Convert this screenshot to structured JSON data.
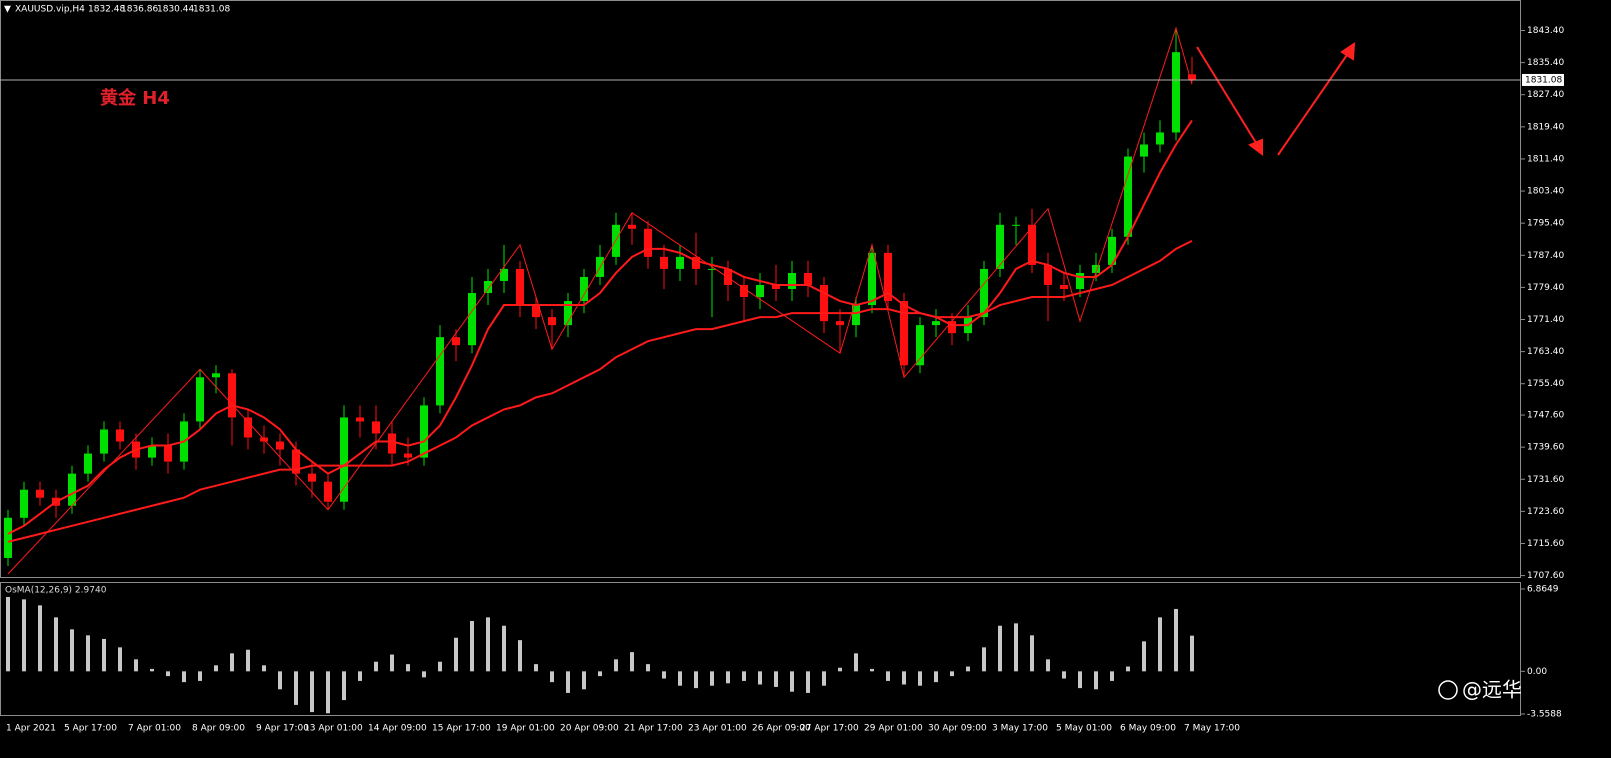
{
  "chart_data": [
    {
      "type": "candlestick",
      "title": "XAUUSD.vip,H4",
      "annotation": "黄金 H4",
      "up_color": "#00e000",
      "down_color": "#ff1010",
      "wick_color_follows_body": true,
      "categories": [
        "1 Apr 2021",
        null,
        null,
        null,
        "5 Apr 17:00",
        null,
        null,
        null,
        "7 Apr 01:00",
        null,
        null,
        null,
        "8 Apr 09:00",
        null,
        null,
        null,
        "9 Apr 17:00",
        null,
        null,
        "13 Apr 01:00",
        null,
        null,
        null,
        "14 Apr 09:00",
        null,
        null,
        null,
        "15 Apr 17:00",
        null,
        null,
        null,
        "19 Apr 01:00",
        null,
        null,
        null,
        "20 Apr 09:00",
        null,
        null,
        null,
        "21 Apr 17:00",
        null,
        null,
        null,
        "23 Apr 01:00",
        null,
        null,
        null,
        "26 Apr 09:00",
        null,
        null,
        "27 Apr 17:00",
        null,
        null,
        null,
        "29 Apr 01:00",
        null,
        null,
        null,
        "30 Apr 09:00",
        null,
        null,
        null,
        "3 May 17:00",
        null,
        null,
        null,
        "5 May 01:00",
        null,
        null,
        null,
        "6 May 09:00",
        null,
        null,
        null,
        "7 May 17:00"
      ],
      "ohlc": [
        [
          1712,
          1724,
          1710,
          1722
        ],
        [
          1722,
          1731,
          1720,
          1729
        ],
        [
          1729,
          1731,
          1725,
          1727
        ],
        [
          1727,
          1729,
          1722,
          1725
        ],
        [
          1725,
          1735,
          1723,
          1733
        ],
        [
          1733,
          1740,
          1731,
          1738
        ],
        [
          1738,
          1746,
          1736,
          1744
        ],
        [
          1744,
          1746,
          1739,
          1741
        ],
        [
          1741,
          1743,
          1734,
          1737
        ],
        [
          1737,
          1742,
          1735,
          1740
        ],
        [
          1740,
          1743,
          1733,
          1736
        ],
        [
          1736,
          1748,
          1734,
          1746
        ],
        [
          1746,
          1759,
          1744,
          1757
        ],
        [
          1757,
          1760,
          1753,
          1758
        ],
        [
          1758,
          1759,
          1740,
          1747
        ],
        [
          1747,
          1749,
          1739,
          1742
        ],
        [
          1742,
          1745,
          1738,
          1741
        ],
        [
          1741,
          1743,
          1735,
          1739
        ],
        [
          1739,
          1741,
          1730,
          1733
        ],
        [
          1733,
          1736,
          1727,
          1731
        ],
        [
          1731,
          1733,
          1724,
          1726
        ],
        [
          1726,
          1750,
          1724,
          1747
        ],
        [
          1747,
          1750,
          1742,
          1746
        ],
        [
          1746,
          1750,
          1739,
          1743
        ],
        [
          1743,
          1746,
          1735,
          1738
        ],
        [
          1738,
          1742,
          1735,
          1737
        ],
        [
          1737,
          1752,
          1735,
          1750
        ],
        [
          1750,
          1770,
          1748,
          1767
        ],
        [
          1767,
          1769,
          1761,
          1765
        ],
        [
          1765,
          1782,
          1763,
          1778
        ],
        [
          1778,
          1784,
          1775,
          1781
        ],
        [
          1781,
          1790,
          1778,
          1784
        ],
        [
          1784,
          1786,
          1772,
          1775
        ],
        [
          1775,
          1777,
          1769,
          1772
        ],
        [
          1772,
          1774,
          1764,
          1770
        ],
        [
          1770,
          1778,
          1767,
          1776
        ],
        [
          1776,
          1784,
          1773,
          1782
        ],
        [
          1782,
          1790,
          1780,
          1787
        ],
        [
          1787,
          1798,
          1785,
          1795
        ],
        [
          1795,
          1798,
          1790,
          1794
        ],
        [
          1794,
          1796,
          1784,
          1787
        ],
        [
          1787,
          1790,
          1779,
          1784
        ],
        [
          1784,
          1790,
          1781,
          1787
        ],
        [
          1787,
          1793,
          1780,
          1784
        ],
        [
          1784,
          1787,
          1772,
          1784
        ],
        [
          1784,
          1786,
          1776,
          1780
        ],
        [
          1780,
          1782,
          1771,
          1777
        ],
        [
          1777,
          1783,
          1774,
          1780
        ],
        [
          1780,
          1785,
          1776,
          1779
        ],
        [
          1779,
          1786,
          1776,
          1783
        ],
        [
          1783,
          1786,
          1777,
          1780
        ],
        [
          1780,
          1782,
          1768,
          1771
        ],
        [
          1771,
          1774,
          1763,
          1770
        ],
        [
          1770,
          1777,
          1767,
          1775
        ],
        [
          1775,
          1790,
          1773,
          1788
        ],
        [
          1788,
          1790,
          1774,
          1776
        ],
        [
          1776,
          1778,
          1757,
          1760
        ],
        [
          1760,
          1772,
          1758,
          1770
        ],
        [
          1770,
          1774,
          1767,
          1771
        ],
        [
          1771,
          1773,
          1765,
          1768
        ],
        [
          1768,
          1775,
          1766,
          1772
        ],
        [
          1772,
          1786,
          1770,
          1784
        ],
        [
          1784,
          1798,
          1782,
          1795
        ],
        [
          1795,
          1797,
          1790,
          1795
        ],
        [
          1795,
          1799,
          1783,
          1785
        ],
        [
          1785,
          1788,
          1771,
          1780
        ],
        [
          1780,
          1783,
          1776,
          1779
        ],
        [
          1779,
          1785,
          1777,
          1783
        ],
        [
          1783,
          1788,
          1781,
          1785
        ],
        [
          1785,
          1794,
          1783,
          1792
        ],
        [
          1792,
          1814,
          1790,
          1812
        ],
        [
          1812,
          1818,
          1808,
          1815
        ],
        [
          1815,
          1821,
          1813,
          1818
        ],
        [
          1818,
          1844,
          1816,
          1838
        ],
        [
          1832.48,
          1836.86,
          1830.44,
          1831.08
        ]
      ],
      "overlays": [
        {
          "color": "#ff1a1a",
          "values": [
            1718,
            1720,
            1723,
            1726,
            1728,
            1730,
            1734,
            1737,
            1739,
            1740,
            1740,
            1741,
            1744,
            1748,
            1750,
            1749,
            1747,
            1744,
            1739,
            1736,
            1733,
            1735,
            1738,
            1741,
            1741,
            1740,
            1741,
            1745,
            1752,
            1760,
            1769,
            1775,
            1775,
            1775,
            1775,
            1775,
            1775,
            1778,
            1783,
            1787,
            1789,
            1789,
            1788,
            1786,
            1785,
            1784,
            1782,
            1781,
            1780,
            1780,
            1780,
            1778,
            1776,
            1775,
            1776,
            1778,
            1775,
            1773,
            1772,
            1770,
            1770,
            1773,
            1778,
            1784,
            1786,
            1785,
            1783,
            1782,
            1782,
            1785,
            1792,
            1800,
            1808,
            1815,
            1821
          ]
        },
        {
          "color": "#ff1a1a",
          "values": [
            1716,
            1717,
            1718,
            1719,
            1720,
            1721,
            1722,
            1723,
            1724,
            1725,
            1726,
            1727,
            1729,
            1730,
            1731,
            1732,
            1733,
            1734,
            1734,
            1735,
            1735,
            1735,
            1735,
            1735,
            1735,
            1736,
            1738,
            1740,
            1742,
            1745,
            1747,
            1749,
            1750,
            1752,
            1753,
            1755,
            1757,
            1759,
            1762,
            1764,
            1766,
            1767,
            1768,
            1769,
            1769,
            1770,
            1771,
            1772,
            1772,
            1773,
            1773,
            1773,
            1773,
            1773,
            1774,
            1774,
            1773,
            1773,
            1772,
            1772,
            1772,
            1773,
            1775,
            1776,
            1777,
            1777,
            1777,
            1778,
            1779,
            1780,
            1782,
            1784,
            1786,
            1789,
            1791
          ]
        }
      ],
      "zigzag": {
        "color": "#ff1a1a",
        "x": [
          0,
          12,
          20,
          32,
          34,
          39,
          52,
          54,
          56,
          65,
          67,
          73,
          74
        ],
        "values": [
          1708,
          1759,
          1724,
          1790,
          1764,
          1798,
          1763,
          1790,
          1757,
          1799,
          1771,
          1844,
          1830
        ]
      },
      "ylim": [
        1707,
        1851
      ],
      "yticks": [
        {
          "value": 1707.6,
          "label": "1707.60"
        },
        {
          "value": 1715.6,
          "label": "1715.60"
        },
        {
          "value": 1723.6,
          "label": "1723.60"
        },
        {
          "value": 1731.6,
          "label": "1731.60"
        },
        {
          "value": 1739.6,
          "label": "1739.60"
        },
        {
          "value": 1747.6,
          "label": "1747.60"
        },
        {
          "value": 1755.4,
          "label": "1755.40"
        },
        {
          "value": 1763.4,
          "label": "1763.40"
        },
        {
          "value": 1771.4,
          "label": "1771.40"
        },
        {
          "value": 1779.4,
          "label": "1779.40"
        },
        {
          "value": 1787.4,
          "label": "1787.40"
        },
        {
          "value": 1795.4,
          "label": "1795.40"
        },
        {
          "value": 1803.4,
          "label": "1803.40"
        },
        {
          "value": 1811.4,
          "label": "1811.40"
        },
        {
          "value": 1819.4,
          "label": "1819.40"
        },
        {
          "value": 1827.4,
          "label": "1827.40"
        },
        {
          "value": 1835.4,
          "label": "1835.40"
        },
        {
          "value": 1843.4,
          "label": "1843.40"
        }
      ]
    },
    {
      "type": "bar",
      "title": "OsMA(12,26,9) 2.9740",
      "color": "#c8c8c8",
      "values": [
        6.2,
        6.0,
        5.5,
        4.5,
        3.5,
        3.0,
        2.7,
        2.0,
        1.0,
        0.2,
        -0.4,
        -0.9,
        -0.8,
        0.5,
        1.5,
        1.8,
        0.5,
        -1.5,
        -2.8,
        -3.4,
        -3.5,
        -2.4,
        -0.8,
        0.8,
        1.4,
        0.6,
        -0.5,
        0.8,
        2.8,
        4.2,
        4.5,
        3.8,
        2.6,
        0.6,
        -0.9,
        -1.8,
        -1.5,
        -0.4,
        1.0,
        1.6,
        0.6,
        -0.6,
        -1.2,
        -1.4,
        -1.2,
        -1.0,
        -0.8,
        -1.1,
        -1.3,
        -1.7,
        -1.8,
        -1.2,
        0.3,
        1.5,
        0.2,
        -0.8,
        -1.1,
        -1.2,
        -0.9,
        -0.4,
        0.4,
        2.0,
        3.8,
        4.0,
        3.0,
        1.0,
        -0.6,
        -1.4,
        -1.5,
        -0.8,
        0.4,
        2.5,
        4.5,
        5.2,
        2.974
      ],
      "ylim": [
        -3.5588,
        6.8649
      ],
      "yticks": [
        6.8649,
        {
          "value": 0,
          "label": "0.00"
        },
        -3.5588
      ]
    }
  ],
  "watermark": "@远华"
}
